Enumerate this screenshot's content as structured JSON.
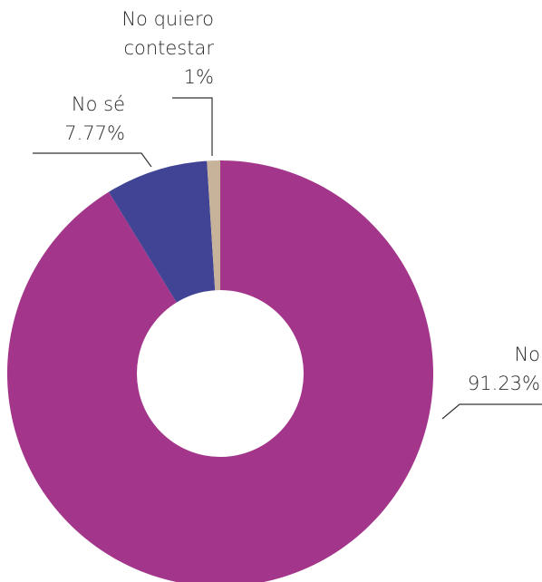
{
  "chart_data": {
    "type": "pie",
    "donut": true,
    "title": "",
    "slices": [
      {
        "category": "No",
        "value": 91.23,
        "value_label": "91.23%",
        "color": "#a3358a"
      },
      {
        "category": "No sé",
        "value": 7.77,
        "value_label": "7.77%",
        "color": "#414494"
      },
      {
        "category": "No quiero contestar",
        "label_lines": [
          "No quiero",
          "contestar"
        ],
        "value": 1,
        "value_label": "1%",
        "color": "#c7b399"
      }
    ],
    "legend": "none",
    "data_labels": "outside with leader lines"
  }
}
